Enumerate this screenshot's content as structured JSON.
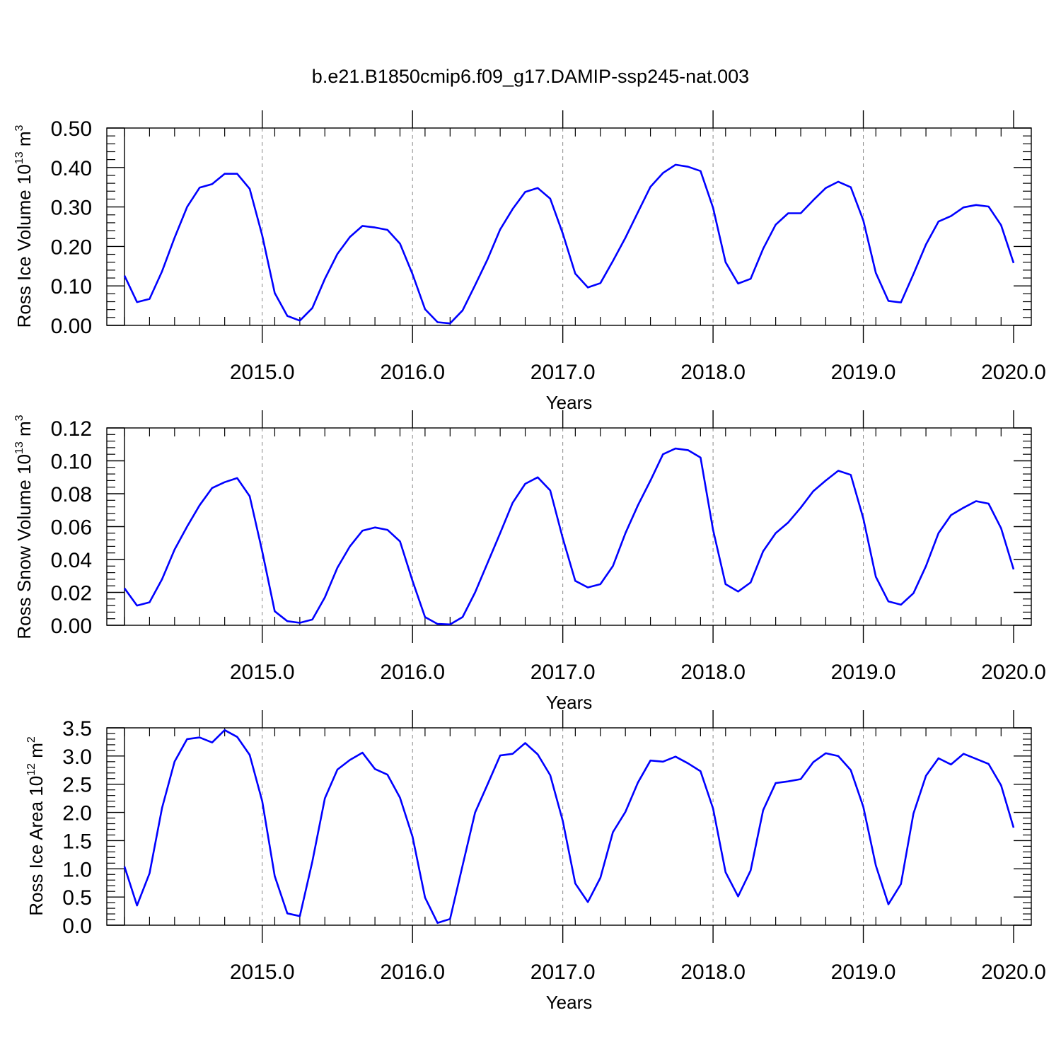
{
  "title": "b.e21.B1850cmip6.f09_g17.DAMIP-ssp245-nat.003",
  "colors": {
    "series": "#0000ff",
    "axis": "#000000",
    "gridline": "#888888"
  },
  "chart_data": [
    {
      "type": "line",
      "xlabel": "Years",
      "ylabel": {
        "main": "Ross Ice Volume 10",
        "exp": "13",
        "unit": " m",
        "unit_exp": "3"
      },
      "xlim": [
        2014.0833,
        2020.0
      ],
      "ylim": [
        0,
        0.5
      ],
      "xticks": [
        2015.0,
        2016.0,
        2017.0,
        2018.0,
        2019.0,
        2020.0
      ],
      "xtick_labels": [
        "2015.0",
        "2016.0",
        "2017.0",
        "2018.0",
        "2019.0",
        "2020.0"
      ],
      "yticks": [
        0,
        0.1,
        0.2,
        0.3,
        0.4,
        0.5
      ],
      "ytick_labels": [
        "0.00",
        "0.10",
        "0.20",
        "0.30",
        "0.40",
        "0.50"
      ],
      "grid": "vertical dashed at major x ticks",
      "series": [
        {
          "values": [
            0.126,
            0.059,
            0.067,
            0.137,
            0.222,
            0.3,
            0.349,
            0.358,
            0.384,
            0.384,
            0.346,
            0.228,
            0.082,
            0.024,
            0.012,
            0.044,
            0.118,
            0.181,
            0.224,
            0.252,
            0.248,
            0.242,
            0.207,
            0.13,
            0.041,
            0.008,
            0.005,
            0.038,
            0.102,
            0.168,
            0.243,
            0.295,
            0.338,
            0.348,
            0.321,
            0.233,
            0.131,
            0.096,
            0.107,
            0.163,
            0.222,
            0.287,
            0.351,
            0.386,
            0.407,
            0.402,
            0.391,
            0.298,
            0.16,
            0.106,
            0.118,
            0.194,
            0.255,
            0.284,
            0.284,
            0.317,
            0.348,
            0.364,
            0.35,
            0.266,
            0.133,
            0.062,
            0.058,
            0.13,
            0.205,
            0.263,
            0.277,
            0.299,
            0.305,
            0.301,
            0.254,
            0.158
          ]
        }
      ]
    },
    {
      "type": "line",
      "xlabel": "Years",
      "ylabel": {
        "main": "Ross Snow Volume 10",
        "exp": "13",
        "unit": " m",
        "unit_exp": "3"
      },
      "xlim": [
        2014.0833,
        2020.0
      ],
      "ylim": [
        0,
        0.12
      ],
      "xticks": [
        2015.0,
        2016.0,
        2017.0,
        2018.0,
        2019.0,
        2020.0
      ],
      "xtick_labels": [
        "2015.0",
        "2016.0",
        "2017.0",
        "2018.0",
        "2019.0",
        "2020.0"
      ],
      "yticks": [
        0,
        0.02,
        0.04,
        0.06,
        0.08,
        0.1,
        0.12
      ],
      "ytick_labels": [
        "0.00",
        "0.02",
        "0.04",
        "0.06",
        "0.08",
        "0.10",
        "0.12"
      ],
      "grid": "vertical dashed at major x ticks",
      "series": [
        {
          "values": [
            0.0225,
            0.012,
            0.014,
            0.028,
            0.046,
            0.06,
            0.073,
            0.0835,
            0.087,
            0.0895,
            0.0785,
            0.045,
            0.0085,
            0.0025,
            0.0015,
            0.0035,
            0.017,
            0.035,
            0.048,
            0.0575,
            0.0595,
            0.058,
            0.051,
            0.027,
            0.005,
            0.0008,
            0.0005,
            0.005,
            0.02,
            0.038,
            0.056,
            0.0745,
            0.086,
            0.09,
            0.082,
            0.053,
            0.027,
            0.023,
            0.025,
            0.036,
            0.056,
            0.073,
            0.088,
            0.104,
            0.1075,
            0.1065,
            0.102,
            0.058,
            0.025,
            0.0205,
            0.026,
            0.045,
            0.056,
            0.0625,
            0.0715,
            0.0815,
            0.088,
            0.094,
            0.0915,
            0.065,
            0.0295,
            0.0145,
            0.0125,
            0.0195,
            0.036,
            0.056,
            0.067,
            0.0715,
            0.0755,
            0.074,
            0.059,
            0.034
          ]
        }
      ]
    },
    {
      "type": "line",
      "xlabel": "Years",
      "ylabel": {
        "main": "Ross Ice Area 10",
        "exp": "12",
        "unit": " m",
        "unit_exp": "2"
      },
      "xlim": [
        2014.0833,
        2020.0
      ],
      "ylim": [
        0,
        3.5
      ],
      "xticks": [
        2015.0,
        2016.0,
        2017.0,
        2018.0,
        2019.0,
        2020.0
      ],
      "xtick_labels": [
        "2015.0",
        "2016.0",
        "2017.0",
        "2018.0",
        "2019.0",
        "2020.0"
      ],
      "yticks": [
        0,
        0.5,
        1.0,
        1.5,
        2.0,
        2.5,
        3.0,
        3.5
      ],
      "ytick_labels": [
        "0.0",
        "0.5",
        "1.0",
        "1.5",
        "2.0",
        "2.5",
        "3.0",
        "3.5"
      ],
      "grid": "vertical dashed at major x ticks",
      "series": [
        {
          "values": [
            1.04,
            0.35,
            0.92,
            2.08,
            2.9,
            3.3,
            3.33,
            3.24,
            3.46,
            3.34,
            3.02,
            2.2,
            0.87,
            0.21,
            0.16,
            1.13,
            2.25,
            2.76,
            2.93,
            3.06,
            2.77,
            2.67,
            2.26,
            1.57,
            0.49,
            0.04,
            0.11,
            1.06,
            2.0,
            2.5,
            3.01,
            3.04,
            3.23,
            3.03,
            2.66,
            1.85,
            0.74,
            0.41,
            0.84,
            1.65,
            2.01,
            2.53,
            2.92,
            2.9,
            2.99,
            2.87,
            2.73,
            2.07,
            0.94,
            0.51,
            0.97,
            2.04,
            2.52,
            2.55,
            2.59,
            2.89,
            3.05,
            3.0,
            2.75,
            2.1,
            1.06,
            0.37,
            0.73,
            1.98,
            2.65,
            2.96,
            2.85,
            3.04,
            2.95,
            2.86,
            2.48,
            1.73
          ]
        }
      ]
    }
  ]
}
